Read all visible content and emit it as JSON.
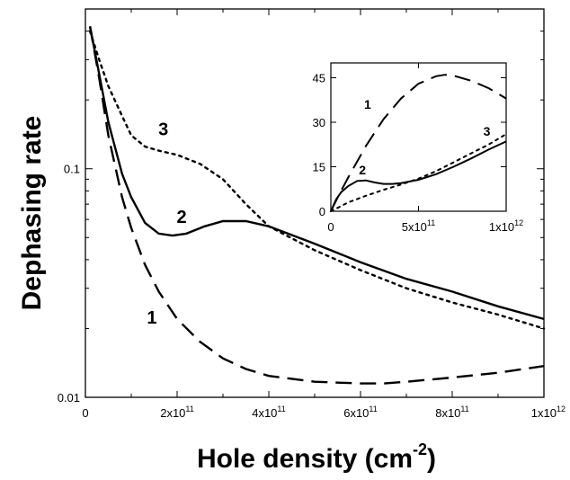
{
  "chart_data": {
    "type": "line",
    "title": "",
    "xlabel": {
      "text": "Hole density (cm",
      "sup": "-2",
      "close": ")"
    },
    "ylabel": "Dephasing rate",
    "y_scale": "log",
    "xlim": [
      0,
      1000000000000.0
    ],
    "ylim": [
      0.01,
      0.5
    ],
    "grid": false,
    "x_ticks": [
      {
        "value": 0,
        "label": "0",
        "sup": ""
      },
      {
        "value": 200000000000.0,
        "label": "2x10",
        "sup": "11"
      },
      {
        "value": 400000000000.0,
        "label": "4x10",
        "sup": "11"
      },
      {
        "value": 600000000000.0,
        "label": "6x10",
        "sup": "11"
      },
      {
        "value": 800000000000.0,
        "label": "8x10",
        "sup": "11"
      },
      {
        "value": 1000000000000.0,
        "label": "1x10",
        "sup": "12"
      }
    ],
    "y_ticks": [
      {
        "value": 0.01,
        "label": "0.01"
      },
      {
        "value": 0.1,
        "label": "0.1"
      }
    ],
    "series": [
      {
        "name": "1",
        "dash": "long",
        "x": [
          10000000000.0,
          30000000000.0,
          50000000000.0,
          80000000000.0,
          100000000000.0,
          130000000000.0,
          160000000000.0,
          200000000000.0,
          250000000000.0,
          300000000000.0,
          350000000000.0,
          400000000000.0,
          500000000000.0,
          600000000000.0,
          650000000000.0,
          700000000000.0,
          800000000000.0,
          900000000000.0,
          1000000000000.0
        ],
        "y": [
          0.42,
          0.25,
          0.14,
          0.075,
          0.055,
          0.038,
          0.029,
          0.022,
          0.0175,
          0.0148,
          0.0133,
          0.0124,
          0.0117,
          0.0115,
          0.0115,
          0.0117,
          0.0122,
          0.0128,
          0.0137
        ]
      },
      {
        "name": "2",
        "dash": "solid",
        "x": [
          10000000000.0,
          30000000000.0,
          50000000000.0,
          80000000000.0,
          100000000000.0,
          130000000000.0,
          160000000000.0,
          190000000000.0,
          220000000000.0,
          260000000000.0,
          300000000000.0,
          350000000000.0,
          400000000000.0,
          500000000000.0,
          600000000000.0,
          700000000000.0,
          800000000000.0,
          900000000000.0,
          1000000000000.0
        ],
        "y": [
          0.42,
          0.26,
          0.16,
          0.095,
          0.075,
          0.058,
          0.052,
          0.051,
          0.052,
          0.056,
          0.059,
          0.059,
          0.056,
          0.047,
          0.039,
          0.033,
          0.029,
          0.025,
          0.022
        ]
      },
      {
        "name": "3",
        "dash": "dotted",
        "x": [
          10000000000.0,
          30000000000.0,
          50000000000.0,
          80000000000.0,
          100000000000.0,
          130000000000.0,
          160000000000.0,
          200000000000.0,
          250000000000.0,
          300000000000.0,
          350000000000.0,
          400000000000.0,
          500000000000.0,
          600000000000.0,
          700000000000.0,
          800000000000.0,
          900000000000.0,
          1000000000000.0
        ],
        "y": [
          0.4,
          0.3,
          0.23,
          0.17,
          0.14,
          0.125,
          0.12,
          0.115,
          0.105,
          0.09,
          0.07,
          0.056,
          0.044,
          0.036,
          0.03,
          0.026,
          0.023,
          0.02
        ]
      }
    ],
    "curve_labels": [
      {
        "text": "1",
        "x": 145000000000.0,
        "y": 0.021
      },
      {
        "text": "2",
        "x": 210000000000.0,
        "y": 0.058
      },
      {
        "text": "3",
        "x": 170000000000.0,
        "y": 0.14
      }
    ],
    "inset": {
      "type": "line",
      "y_scale": "linear",
      "xlim": [
        0,
        1000000000000.0
      ],
      "ylim": [
        0,
        50
      ],
      "x_ticks": [
        {
          "value": 0,
          "label": "0",
          "sup": ""
        },
        {
          "value": 500000000000.0,
          "label": "5x10",
          "sup": "11"
        },
        {
          "value": 1000000000000.0,
          "label": "1x10",
          "sup": "12"
        }
      ],
      "y_ticks": [
        {
          "value": 0,
          "label": "0"
        },
        {
          "value": 15,
          "label": "15"
        },
        {
          "value": 30,
          "label": "30"
        },
        {
          "value": 45,
          "label": "45"
        }
      ],
      "series": [
        {
          "name": "1",
          "dash": "long",
          "x": [
            0,
            50000000000.0,
            100000000000.0,
            200000000000.0,
            300000000000.0,
            400000000000.0,
            500000000000.0,
            600000000000.0,
            650000000000.0,
            700000000000.0,
            800000000000.0,
            900000000000.0,
            1000000000000.0
          ],
          "y": [
            0,
            6,
            11.5,
            22,
            31,
            38,
            43,
            45.5,
            46,
            45.7,
            44,
            41.5,
            38
          ]
        },
        {
          "name": "2",
          "dash": "solid",
          "x": [
            0,
            30000000000.0,
            60000000000.0,
            100000000000.0,
            150000000000.0,
            200000000000.0,
            250000000000.0,
            300000000000.0,
            350000000000.0,
            400000000000.0,
            500000000000.0,
            600000000000.0,
            700000000000.0,
            800000000000.0,
            900000000000.0,
            1000000000000.0
          ],
          "y": [
            0,
            4,
            6.5,
            8.5,
            10.2,
            10.4,
            9.7,
            9.2,
            9.2,
            9.5,
            10.6,
            12.5,
            15,
            17.8,
            20.8,
            23.5
          ]
        },
        {
          "name": "3",
          "dash": "dotted",
          "x": [
            0,
            50000000000.0,
            100000000000.0,
            200000000000.0,
            300000000000.0,
            400000000000.0,
            500000000000.0,
            600000000000.0,
            700000000000.0,
            800000000000.0,
            900000000000.0,
            1000000000000.0
          ],
          "y": [
            0,
            1.5,
            3,
            5.2,
            7.2,
            9,
            11,
            13.5,
            16.5,
            19.5,
            22.5,
            26
          ]
        }
      ],
      "curve_labels": [
        {
          "text": "1",
          "x": 210000000000.0,
          "y": 34.5
        },
        {
          "text": "2",
          "x": 180000000000.0,
          "y": 12.5
        },
        {
          "text": "3",
          "x": 890000000000.0,
          "y": 25.5
        }
      ]
    }
  }
}
